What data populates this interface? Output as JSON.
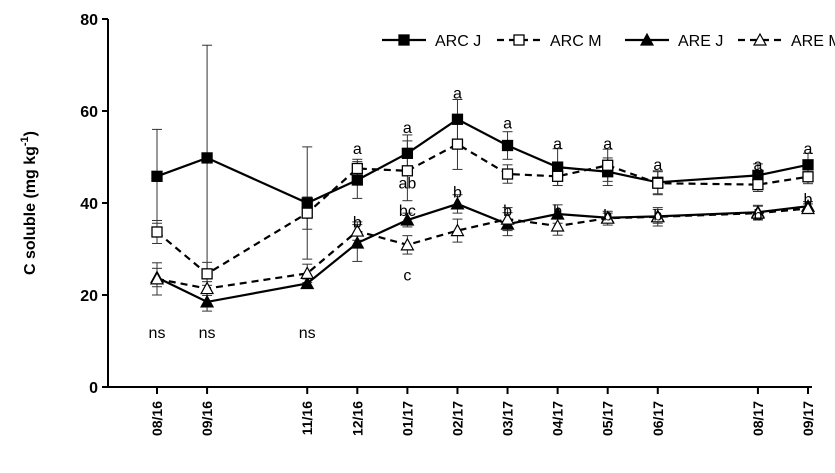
{
  "chart_data": {
    "type": "line",
    "ylabel": "C soluble (mg kg-1)",
    "ylabel_parts": {
      "base": "C soluble (mg kg",
      "sup": "-1",
      "close": ")"
    },
    "ylim": [
      0,
      80
    ],
    "yticks": [
      0,
      20,
      40,
      60,
      80
    ],
    "grid": false,
    "legend_position": "top-right",
    "categories": [
      "08/16",
      "09/16",
      "11/16",
      "12/16",
      "01/17",
      "02/17",
      "03/17",
      "04/17",
      "05/17",
      "06/17",
      "08/17",
      "09/17"
    ],
    "x_months": [
      0,
      1,
      3,
      4,
      5,
      6,
      7,
      8,
      9,
      10,
      12,
      13
    ],
    "series": [
      {
        "name": "ARC J",
        "marker": "square-filled",
        "line": "solid",
        "values": [
          45.8,
          49.8,
          40.0,
          45.0,
          50.8,
          58.2,
          52.5,
          47.8,
          46.8,
          44.5,
          46.0,
          48.3
        ],
        "errors": [
          10.2,
          24.5,
          12.2,
          4.0,
          4.0,
          4.3,
          3.0,
          4.0,
          3.0,
          2.5,
          2.5,
          2.5
        ]
      },
      {
        "name": "ARC M",
        "marker": "square-open",
        "line": "dashed",
        "values": [
          33.7,
          24.6,
          37.8,
          47.5,
          47.0,
          52.8,
          46.3,
          45.8,
          48.2,
          44.3,
          44.0,
          45.7
        ],
        "errors": [
          2.5,
          2.5,
          3.5,
          2.0,
          6.5,
          5.5,
          2.0,
          2.0,
          3.5,
          2.5,
          1.5,
          1.5
        ]
      },
      {
        "name": "ARE J",
        "marker": "triangle-filled",
        "line": "solid",
        "values": [
          23.8,
          18.5,
          22.5,
          31.3,
          36.3,
          39.8,
          35.4,
          37.6,
          36.8,
          37.1,
          38.0,
          39.3
        ],
        "errors": [
          2.0,
          2.0,
          1.0,
          4.0,
          1.5,
          2.0,
          2.5,
          2.0,
          1.0,
          1.5,
          1.5,
          1.0
        ]
      },
      {
        "name": "ARE M",
        "marker": "triangle-open",
        "line": "dashed",
        "values": [
          23.5,
          21.4,
          24.7,
          33.9,
          30.9,
          34.0,
          36.5,
          35.0,
          36.7,
          37.0,
          37.8,
          38.8
        ],
        "errors": [
          3.5,
          1.5,
          2.0,
          2.0,
          2.0,
          2.5,
          2.5,
          2.0,
          1.5,
          2.0,
          1.5,
          1.0
        ]
      }
    ],
    "annotations": [
      {
        "text": "ns",
        "x_index": 0,
        "y": 12
      },
      {
        "text": "ns",
        "x_index": 1,
        "y": 12
      },
      {
        "text": "ns",
        "x_index": 2,
        "y": 12
      },
      {
        "text": "a",
        "x_index": 3,
        "y": 52
      },
      {
        "text": "b",
        "x_index": 3,
        "y": 36
      },
      {
        "text": "a",
        "x_index": 4,
        "y": 56.5
      },
      {
        "text": "ab",
        "x_index": 4,
        "y": 44.5
      },
      {
        "text": "bc",
        "x_index": 4,
        "y": 38.5
      },
      {
        "text": "c",
        "x_index": 4,
        "y": 24.5
      },
      {
        "text": "a",
        "x_index": 5,
        "y": 64
      },
      {
        "text": "b",
        "x_index": 5,
        "y": 42.5
      },
      {
        "text": "a",
        "x_index": 6,
        "y": 57.5
      },
      {
        "text": "b",
        "x_index": 6,
        "y": 38.5
      },
      {
        "text": "a",
        "x_index": 7,
        "y": 53
      },
      {
        "text": "b",
        "x_index": 7,
        "y": 38.5
      },
      {
        "text": "a",
        "x_index": 8,
        "y": 53
      },
      {
        "text": "b",
        "x_index": 8,
        "y": 37.5
      },
      {
        "text": "a",
        "x_index": 9,
        "y": 48.5
      },
      {
        "text": "b",
        "x_index": 9,
        "y": 37.5
      },
      {
        "text": "a",
        "x_index": 10,
        "y": 48.5
      },
      {
        "text": "b",
        "x_index": 10,
        "y": 37.5
      },
      {
        "text": "a",
        "x_index": 11,
        "y": 52
      },
      {
        "text": "b",
        "x_index": 11,
        "y": 41
      }
    ]
  }
}
